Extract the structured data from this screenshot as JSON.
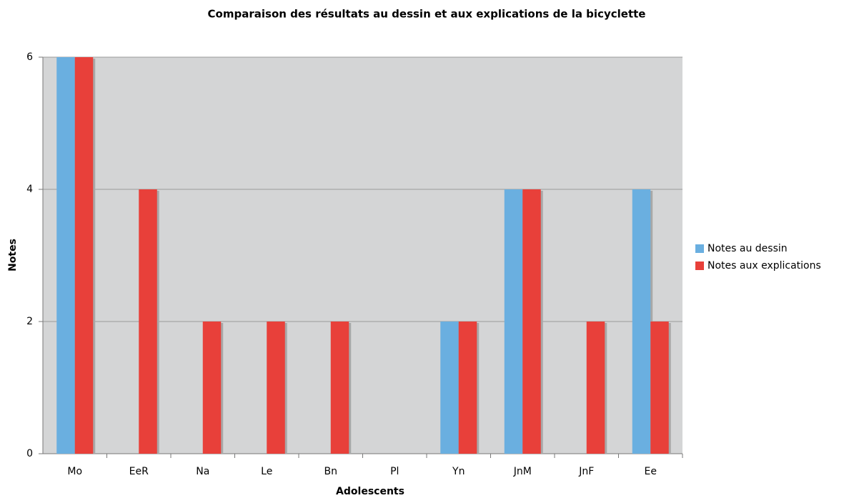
{
  "chart_data": {
    "type": "bar",
    "title": "Comparaison des résultats au dessin et aux explications de la bicyclette",
    "x_label": "Adolescents",
    "y_label": "Notes",
    "categories": [
      "Mo",
      "EeR",
      "Na",
      "Le",
      "Bn",
      "Pl",
      "Yn",
      "JnM",
      "JnF",
      "Ee"
    ],
    "series": [
      {
        "name": "Notes au dessin",
        "color": "#6aafe0",
        "values": [
          6,
          0,
          0,
          0,
          0,
          0,
          2,
          4,
          0,
          4
        ]
      },
      {
        "name": "Notes aux explications",
        "color": "#e8403a",
        "values": [
          6,
          4,
          2,
          2,
          2,
          0,
          2,
          4,
          2,
          2
        ]
      }
    ],
    "ylim": [
      0,
      6
    ],
    "yticks": [
      0,
      2,
      4,
      6
    ],
    "grid": true,
    "legend": "right"
  }
}
